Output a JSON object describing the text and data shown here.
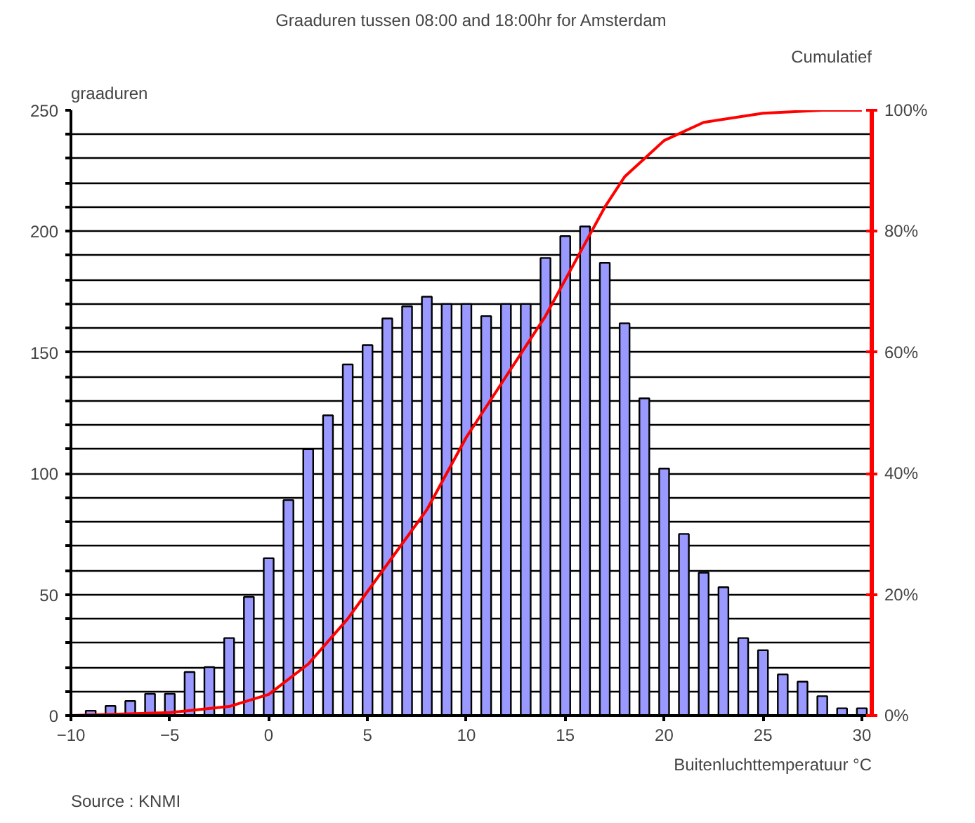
{
  "chart_data": {
    "type": "bar",
    "title": "Graaduren tussen 08:00 and 18:00hr for Amsterdam",
    "ylabel": "graaduren",
    "y2label": "Cumulatief",
    "xlabel": "Buitenluchttemperatuur °C",
    "annotations": [
      "Source : KNMI"
    ],
    "x": [
      -9,
      -8,
      -7,
      -6,
      -5,
      -4,
      -3,
      -2,
      -1,
      0,
      1,
      2,
      3,
      4,
      5,
      6,
      7,
      8,
      9,
      10,
      11,
      12,
      13,
      14,
      15,
      16,
      17,
      18,
      19,
      20,
      21,
      22,
      23,
      24,
      25,
      26,
      27,
      28,
      29,
      30
    ],
    "series": [
      {
        "color": "#9999ff",
        "values": [
          2,
          4,
          6,
          9,
          9,
          18,
          20,
          32,
          49,
          65,
          89,
          110,
          124,
          145,
          153,
          164,
          169,
          173,
          170,
          170,
          165,
          170,
          170,
          189,
          198,
          202,
          187,
          162,
          131,
          102,
          75,
          59,
          53,
          32,
          27,
          17,
          14,
          8,
          3,
          3
        ]
      },
      {
        "type": "line",
        "axis": "y2",
        "color": "#ff0000",
        "x": [
          -10,
          -5,
          -2,
          0,
          2,
          4,
          6,
          8,
          10,
          12,
          14,
          16,
          17,
          18,
          19,
          20,
          22,
          25,
          28,
          30
        ],
        "values": [
          0,
          0.5,
          1.5,
          3.5,
          8.5,
          16,
          25,
          34,
          46,
          56,
          66,
          78,
          84,
          89,
          92,
          95,
          98,
          99.5,
          100,
          100
        ]
      }
    ],
    "xlim": [
      -10,
      30.5
    ],
    "xticks": [
      -10,
      -5,
      0,
      5,
      10,
      15,
      20,
      25,
      30
    ],
    "ylim": [
      0,
      250
    ],
    "yticks": [
      0,
      {
        "value": 10,
        "label": null
      },
      {
        "value": 20,
        "label": null
      },
      {
        "value": 30,
        "label": null
      },
      {
        "value": 40,
        "label": null
      },
      50,
      {
        "value": 60,
        "label": null
      },
      {
        "value": 70,
        "label": null
      },
      {
        "value": 80,
        "label": null
      },
      {
        "value": 90,
        "label": null
      },
      100,
      {
        "value": 110,
        "label": null
      },
      {
        "value": 120,
        "label": null
      },
      {
        "value": 130,
        "label": null
      },
      {
        "value": 140,
        "label": null
      },
      150,
      {
        "value": 160,
        "label": null
      },
      {
        "value": 170,
        "label": null
      },
      {
        "value": 180,
        "label": null
      },
      {
        "value": 190,
        "label": null
      },
      200,
      {
        "value": 210,
        "label": null
      },
      {
        "value": 220,
        "label": null
      },
      {
        "value": 230,
        "label": null
      },
      {
        "value": 240,
        "label": null
      },
      250
    ],
    "y2lim": [
      0,
      100
    ],
    "y2ticks": [
      {
        "value": 0,
        "label": "0%"
      },
      {
        "value": 20,
        "label": "20%"
      },
      {
        "value": 40,
        "label": "40%"
      },
      {
        "value": 60,
        "label": "60%"
      },
      {
        "value": 80,
        "label": "80%"
      },
      {
        "value": 100,
        "label": "100%"
      }
    ],
    "grid": "y"
  }
}
